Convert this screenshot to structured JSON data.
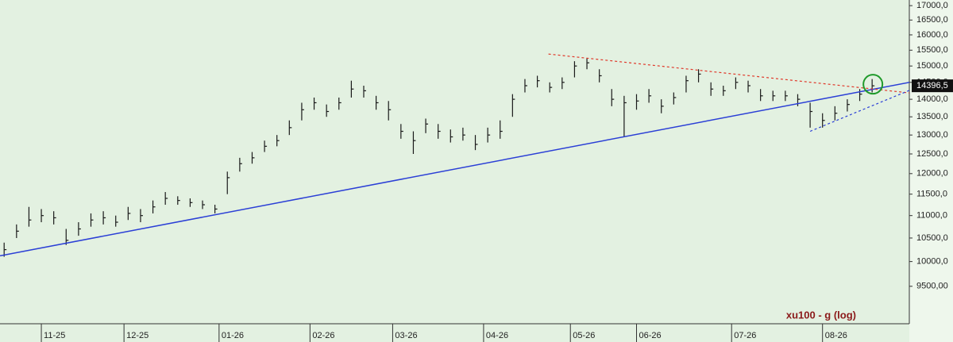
{
  "chart_data": {
    "type": "ohlc",
    "title": "xu100 - g (log)",
    "log_scale": true,
    "background": "#e3f1e1",
    "bar_color": "#1a1a1a",
    "ylim": [
      8790,
      17200
    ],
    "yticks": [
      {
        "value": 9500,
        "label": "9500,00"
      },
      {
        "value": 10000,
        "label": "10000,0"
      },
      {
        "value": 10500,
        "label": "10500,0"
      },
      {
        "value": 11000,
        "label": "11000,0"
      },
      {
        "value": 11500,
        "label": "11500,0"
      },
      {
        "value": 12000,
        "label": "12000,0"
      },
      {
        "value": 12500,
        "label": "12500,0"
      },
      {
        "value": 13000,
        "label": "13000,0"
      },
      {
        "value": 13500,
        "label": "13500,0"
      },
      {
        "value": 14000,
        "label": "14000,0"
      },
      {
        "value": 14500,
        "label": "14500,0"
      },
      {
        "value": 15000,
        "label": "15000,0"
      },
      {
        "value": 15500,
        "label": "15500,0"
      },
      {
        "value": 16000,
        "label": "16000,0"
      },
      {
        "value": 16500,
        "label": "16500,0"
      },
      {
        "value": 17000,
        "label": "17000,0"
      }
    ],
    "xlim": [
      0,
      220
    ],
    "xticks": [
      {
        "value": 10,
        "label": "11-25"
      },
      {
        "value": 30,
        "label": "12-25"
      },
      {
        "value": 53,
        "label": "01-26"
      },
      {
        "value": 75,
        "label": "02-26"
      },
      {
        "value": 95,
        "label": "03-26"
      },
      {
        "value": 117,
        "label": "04-26"
      },
      {
        "value": 138,
        "label": "05-26"
      },
      {
        "value": 154,
        "label": "06-26"
      },
      {
        "value": 177,
        "label": "07-26"
      },
      {
        "value": 199,
        "label": "08-26"
      }
    ],
    "x": [
      1,
      4,
      7,
      10,
      13,
      16,
      19,
      22,
      25,
      28,
      31,
      34,
      37,
      40,
      43,
      46,
      49,
      52,
      55,
      58,
      61,
      64,
      67,
      70,
      73,
      76,
      79,
      82,
      85,
      88,
      91,
      94,
      97,
      100,
      103,
      106,
      109,
      112,
      115,
      118,
      121,
      124,
      127,
      130,
      133,
      136,
      139,
      142,
      145,
      148,
      151,
      154,
      157,
      160,
      163,
      166,
      169,
      172,
      175,
      178,
      181,
      184,
      187,
      190,
      193,
      196,
      199,
      202,
      205,
      208,
      211
    ],
    "high": [
      10400,
      10800,
      11200,
      11150,
      11100,
      10700,
      10850,
      11050,
      11100,
      11000,
      11200,
      11150,
      11350,
      11550,
      11450,
      11400,
      11350,
      11250,
      12050,
      12400,
      12550,
      12850,
      13000,
      13400,
      13900,
      14050,
      13850,
      14050,
      14550,
      14400,
      14100,
      13950,
      13300,
      13100,
      13450,
      13300,
      13150,
      13200,
      13000,
      13200,
      13400,
      14150,
      14600,
      14700,
      14500,
      14650,
      15150,
      15250,
      14900,
      14300,
      14100,
      14150,
      14300,
      14000,
      14200,
      14700,
      14900,
      14500,
      14400,
      14650,
      14550,
      14300,
      14250,
      14250,
      14150,
      13900,
      13600,
      13800,
      14000,
      14300,
      14600
    ],
    "low": [
      10100,
      10500,
      10750,
      10850,
      10800,
      10350,
      10550,
      10750,
      10800,
      10750,
      10900,
      10850,
      11050,
      11250,
      11250,
      11200,
      11150,
      11050,
      11500,
      12050,
      12250,
      12550,
      12700,
      13000,
      13400,
      13700,
      13500,
      13700,
      14050,
      14050,
      13700,
      13400,
      12900,
      12500,
      13050,
      12900,
      12800,
      12850,
      12600,
      12800,
      12900,
      13500,
      14200,
      14350,
      14200,
      14300,
      14650,
      14900,
      14500,
      13800,
      12950,
      13700,
      13900,
      13600,
      13850,
      14200,
      14500,
      14100,
      14100,
      14300,
      14200,
      13950,
      13950,
      13950,
      13800,
      13200,
      13200,
      13400,
      13650,
      13950,
      14200
    ],
    "close": [
      10250,
      10650,
      10900,
      11000,
      10950,
      10450,
      10700,
      10900,
      10950,
      10850,
      11050,
      11000,
      11200,
      11400,
      11350,
      11300,
      11250,
      11150,
      11900,
      12250,
      12400,
      12700,
      12850,
      13200,
      13700,
      13900,
      13650,
      13900,
      14300,
      14250,
      13900,
      13700,
      13100,
      12850,
      13300,
      13100,
      12950,
      13000,
      12750,
      13000,
      13100,
      14000,
      14400,
      14550,
      14350,
      14500,
      15000,
      15100,
      14700,
      14000,
      13900,
      13950,
      14100,
      13800,
      14050,
      14550,
      14750,
      14300,
      14250,
      14500,
      14400,
      14100,
      14100,
      14100,
      14000,
      13650,
      13400,
      13600,
      13850,
      14150,
      14396.5
    ],
    "last_label": "14396,5",
    "trend_lines": [
      {
        "x": [
          0,
          220
        ],
        "y": [
          10120,
          14500
        ],
        "color": "#2b3fd6",
        "dash": false
      },
      {
        "x": [
          132.7,
          220
        ],
        "y": [
          15377,
          14186
        ],
        "color": "#e0392b",
        "dash": true
      },
      {
        "x": [
          196,
          220
        ],
        "y": [
          13100,
          14260
        ],
        "color": "#2b3fd6",
        "dash": true
      }
    ]
  }
}
